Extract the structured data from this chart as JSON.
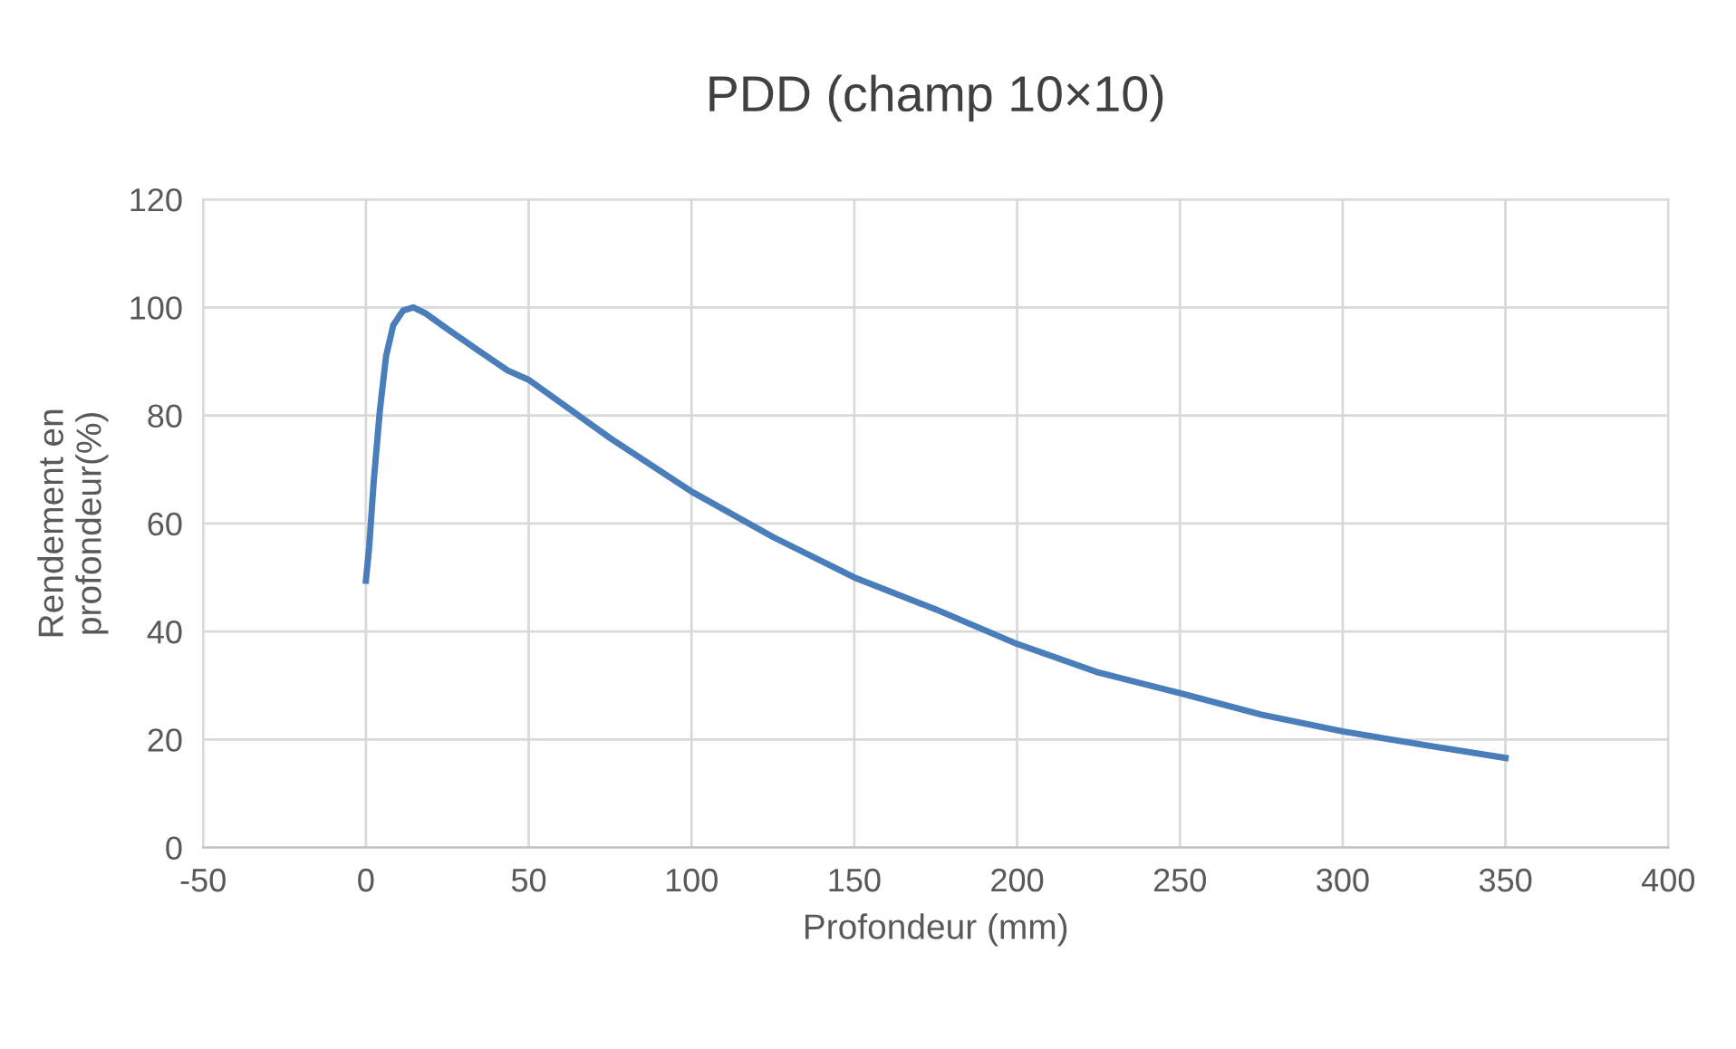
{
  "chart_data": {
    "type": "line",
    "title": "PDD (champ 10×10)",
    "xlabel": "Profondeur (mm)",
    "ylabel": "Rendement en\nprofondeur(%)",
    "series": [
      {
        "color": "#4a7ebb",
        "x": [
          0,
          1,
          2.4,
          4.3,
          6.2,
          8.4,
          11.4,
          14.6,
          18.3,
          24.8,
          34.1,
          43.6,
          50,
          75,
          100,
          125,
          150,
          175,
          200,
          225,
          250,
          275,
          300,
          325,
          350
        ],
        "values": [
          49.4,
          55.6,
          67.8,
          81,
          91,
          96.7,
          99.4,
          100,
          98.9,
          96.1,
          92.2,
          88.3,
          86.6,
          75.8,
          65.9,
          57.5,
          50,
          44.1,
          37.7,
          32.4,
          28.6,
          24.6,
          21.5,
          19,
          16.6
        ]
      }
    ],
    "xlim": [
      -50,
      400
    ],
    "xticks": [
      -50,
      0,
      50,
      100,
      150,
      200,
      250,
      300,
      350,
      400
    ],
    "ylim": [
      0,
      120
    ],
    "yticks": [
      0,
      20,
      40,
      60,
      80,
      100,
      120
    ],
    "grid": true,
    "legend": false,
    "marker": "none",
    "line_style": "solid"
  }
}
